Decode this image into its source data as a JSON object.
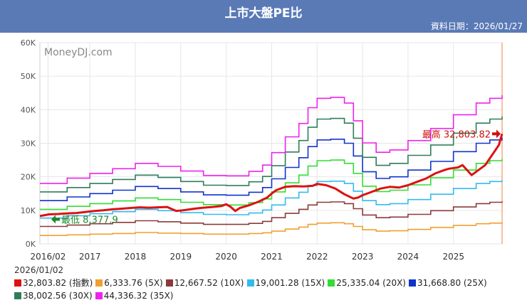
{
  "header": {
    "title": "上市大盤PE比",
    "date": "資料日期：2026/01/27"
  },
  "footer": {
    "start_date": "2026/01/02"
  },
  "chart_data": {
    "type": "line",
    "title": "上市大盤PE比",
    "watermark": "MoneyDJ.com",
    "ylim": [
      0,
      60000
    ],
    "y_ticks": [
      0,
      10000,
      20000,
      30000,
      40000,
      50000,
      60000
    ],
    "y_tick_labels": [
      "0K",
      "10K",
      "20K",
      "30K",
      "40K",
      "50K",
      "60K"
    ],
    "x_range": [
      2015.9,
      2026.07
    ],
    "x_ticks": [
      {
        "label": "2016/02",
        "x": 2016.08
      },
      {
        "label": "2017",
        "x": 2017.0
      },
      {
        "label": "2018",
        "x": 2018.0
      },
      {
        "label": "2019",
        "x": 2019.0
      },
      {
        "label": "2020",
        "x": 2020.0
      },
      {
        "label": "2021",
        "x": 2021.0
      },
      {
        "label": "2022",
        "x": 2022.0
      },
      {
        "label": "2023",
        "x": 2023.0
      },
      {
        "label": "2024",
        "x": 2024.0
      },
      {
        "label": "2025",
        "x": 2025.0
      }
    ],
    "annotations": {
      "max": {
        "label": "最高 32,803.82",
        "x": 2026.07,
        "y": 32804
      },
      "min": {
        "label": "最低 8,377.9",
        "x": 2016.12,
        "y": 8378
      }
    },
    "index_x": [
      2015.9,
      2016.1,
      2016.3,
      2016.5,
      2016.7,
      2016.9,
      2017.1,
      2017.3,
      2017.5,
      2017.7,
      2017.9,
      2018.1,
      2018.3,
      2018.5,
      2018.7,
      2018.9,
      2019.1,
      2019.3,
      2019.5,
      2019.7,
      2019.9,
      2020.0,
      2020.1,
      2020.2,
      2020.3,
      2020.5,
      2020.7,
      2020.9,
      2021.0,
      2021.1,
      2021.3,
      2021.5,
      2021.7,
      2021.9,
      2022.0,
      2022.2,
      2022.4,
      2022.6,
      2022.8,
      2022.9,
      2023.0,
      2023.2,
      2023.4,
      2023.6,
      2023.8,
      2024.0,
      2024.2,
      2024.4,
      2024.6,
      2024.8,
      2024.9,
      2025.1,
      2025.2,
      2025.4,
      2025.5,
      2025.7,
      2025.8,
      2025.9,
      2026.0,
      2026.07
    ],
    "index_y": [
      8300,
      8800,
      8900,
      9100,
      9200,
      9500,
      9800,
      10000,
      10300,
      10500,
      10700,
      10900,
      10800,
      10900,
      11000,
      9800,
      10100,
      10500,
      10800,
      11000,
      11300,
      11800,
      11000,
      9800,
      10700,
      11500,
      12500,
      13800,
      15000,
      16000,
      17000,
      17200,
      17100,
      17300,
      17900,
      17500,
      16500,
      14800,
      13500,
      13800,
      14500,
      15500,
      16500,
      17000,
      16800,
      17500,
      18500,
      19500,
      21000,
      22000,
      22400,
      22800,
      23500,
      20500,
      21500,
      23500,
      25500,
      27500,
      29500,
      32804
    ],
    "band_x": [
      2015.9,
      2016.5,
      2017.0,
      2017.5,
      2018.0,
      2018.5,
      2019.0,
      2019.5,
      2020.0,
      2020.5,
      2020.8,
      2021.0,
      2021.3,
      2021.6,
      2021.8,
      2022.0,
      2022.3,
      2022.6,
      2022.8,
      2023.0,
      2023.3,
      2023.6,
      2024.0,
      2024.5,
      2025.0,
      2025.5,
      2025.8,
      2026.07
    ],
    "series": [
      {
        "name": "6,333.76 (5X)",
        "legend": "6,333.76 (5X)",
        "color": "#f0a030",
        "values": [
          2500,
          2700,
          2900,
          3100,
          3400,
          3200,
          3100,
          2900,
          2900,
          3100,
          3300,
          3800,
          4400,
          5000,
          5800,
          6200,
          6300,
          6000,
          5200,
          4200,
          3800,
          3900,
          4300,
          4900,
          5500,
          6000,
          6200,
          6334
        ]
      },
      {
        "name": "12,667.52 (10X)",
        "legend": "12,667.52 (10X)",
        "color": "#8b3a3a",
        "values": [
          5200,
          5600,
          6000,
          6400,
          6900,
          6600,
          6200,
          5800,
          5800,
          6100,
          6700,
          7800,
          9100,
          10300,
          11600,
          12400,
          12500,
          12000,
          10500,
          8600,
          7800,
          8000,
          8800,
          9900,
          11000,
          12000,
          12400,
          12668
        ]
      },
      {
        "name": "19,001.28 (15X)",
        "legend": "19,001.28 (15X)",
        "color": "#33bbee",
        "values": [
          7700,
          8400,
          9000,
          9600,
          10300,
          9900,
          9300,
          8800,
          8700,
          9200,
          10100,
          11600,
          13700,
          15400,
          17400,
          18600,
          18700,
          18000,
          15700,
          12900,
          11700,
          12000,
          13200,
          14800,
          16500,
          18000,
          18600,
          19001
        ]
      },
      {
        "name": "25,335.04 (20X)",
        "legend": "25,335.04 (20X)",
        "color": "#33dd33",
        "values": [
          10300,
          11200,
          12000,
          12800,
          13700,
          13200,
          12400,
          11700,
          11600,
          12300,
          13400,
          15500,
          18200,
          20500,
          23200,
          24800,
          25000,
          24000,
          21000,
          17200,
          15600,
          16000,
          17600,
          19700,
          22000,
          24000,
          24800,
          25335
        ]
      },
      {
        "name": "31,668.80 (25X)",
        "legend": "31,668.80 (25X)",
        "color": "#1133cc",
        "values": [
          12900,
          14000,
          15000,
          16000,
          17100,
          16500,
          15500,
          14600,
          14500,
          15400,
          16800,
          19400,
          22800,
          25700,
          29000,
          31000,
          31200,
          30000,
          26200,
          21500,
          19500,
          20000,
          22000,
          24600,
          27500,
          30000,
          31000,
          31669
        ]
      },
      {
        "name": "38,002.56 (30X)",
        "legend": "38,002.56 (30X)",
        "color": "#2e7d5a",
        "values": [
          15500,
          16800,
          18000,
          19200,
          20500,
          19800,
          18600,
          17500,
          17400,
          18500,
          20100,
          23300,
          27400,
          30800,
          34800,
          37200,
          37400,
          36000,
          31500,
          25800,
          23400,
          24000,
          26400,
          29500,
          33000,
          36000,
          37200,
          38003
        ]
      },
      {
        "name": "44,336.32 (35X)",
        "legend": "44,336.32 (35X)",
        "color": "#ee22ee",
        "values": [
          18000,
          19600,
          21000,
          22400,
          24000,
          23100,
          21700,
          20400,
          20300,
          21600,
          23500,
          27200,
          31900,
          35900,
          40600,
          43400,
          43700,
          42000,
          36700,
          30100,
          27300,
          28000,
          30800,
          34400,
          38500,
          42000,
          43400,
          44336
        ]
      }
    ],
    "index_series": {
      "name": "32,803.82 (指數)",
      "legend": "32,803.82 (指數)",
      "color": "#dd1111"
    }
  }
}
